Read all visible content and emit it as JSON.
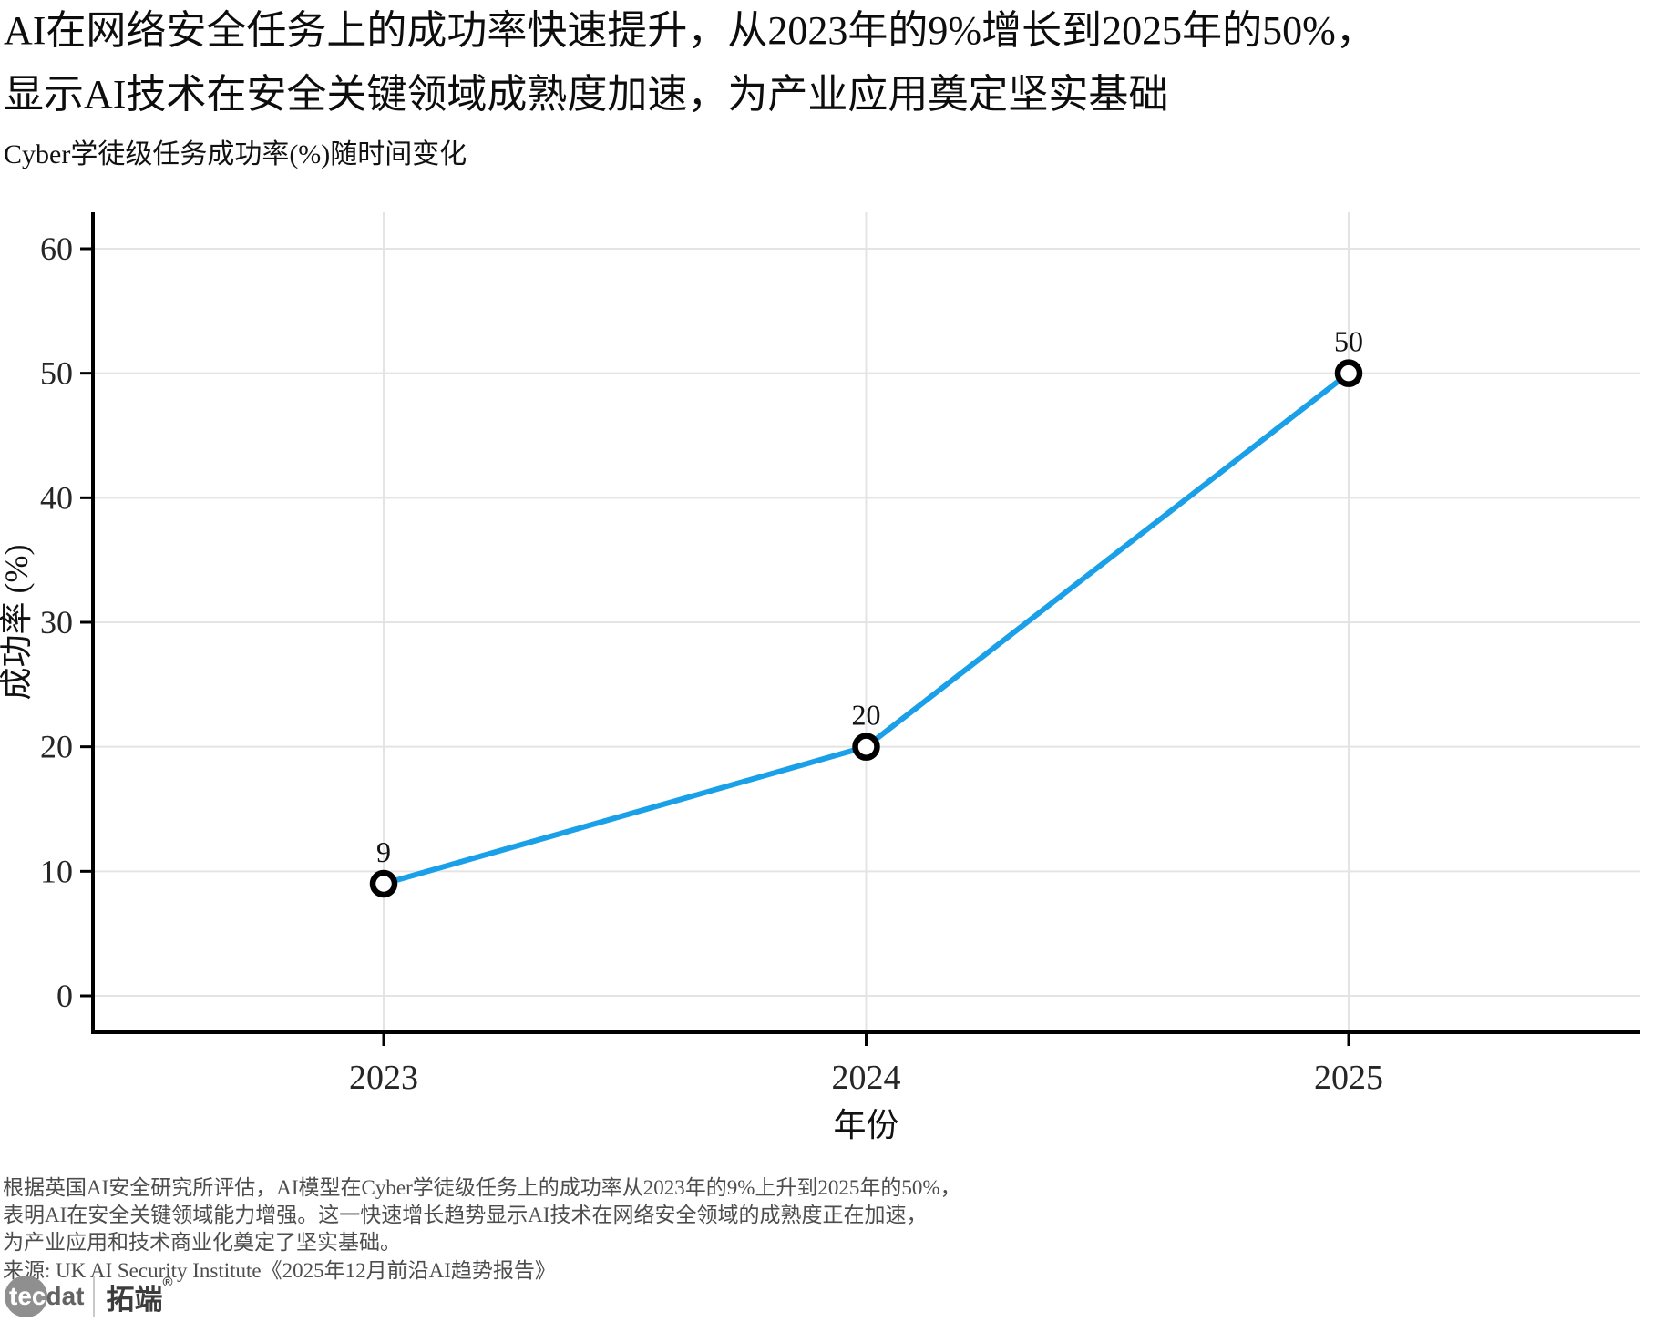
{
  "header": {
    "title_line1": "AI在网络安全任务上的成功率快速提升，从2023年的9%增长到2025年的50%，",
    "title_line2": "显示AI技术在安全关键领域成熟度加速，为产业应用奠定坚实基础",
    "subtitle": "Cyber学徒级任务成功率(%)随时间变化"
  },
  "chart_data": {
    "type": "line",
    "title": "Cyber学徒级任务成功率(%)随时间变化",
    "x": [
      "2023",
      "2024",
      "2025"
    ],
    "series": [
      {
        "name": "成功率",
        "values": [
          9,
          20,
          50
        ]
      }
    ],
    "point_labels": [
      "9",
      "20",
      "50"
    ],
    "xlabel": "年份",
    "ylabel": "成功率 (%)",
    "ylim": [
      0,
      60
    ],
    "yticks": [
      0,
      10,
      20,
      30,
      40,
      50,
      60
    ],
    "grid": true,
    "legend": false,
    "line_color": "#19A0E8",
    "marker": "open-circle",
    "marker_color": "#000000",
    "gridline_color": "#e4e4e4"
  },
  "footer": {
    "lines": [
      "根据英国AI安全研究所评估，AI模型在Cyber学徒级任务上的成功率从2023年的9%上升到2025年的50%，",
      "表明AI在安全关键领域能力增强。这一快速增长趋势显示AI技术在网络安全领域的成熟度正在加速，",
      "为产业应用和技术商业化奠定了坚实基础。"
    ],
    "source": "来源: UK AI Security Institute《2025年12月前沿AI趋势报告》"
  },
  "logo": {
    "tec": "tec",
    "dat": "dat",
    "brand": "拓端",
    "reg": "®"
  }
}
